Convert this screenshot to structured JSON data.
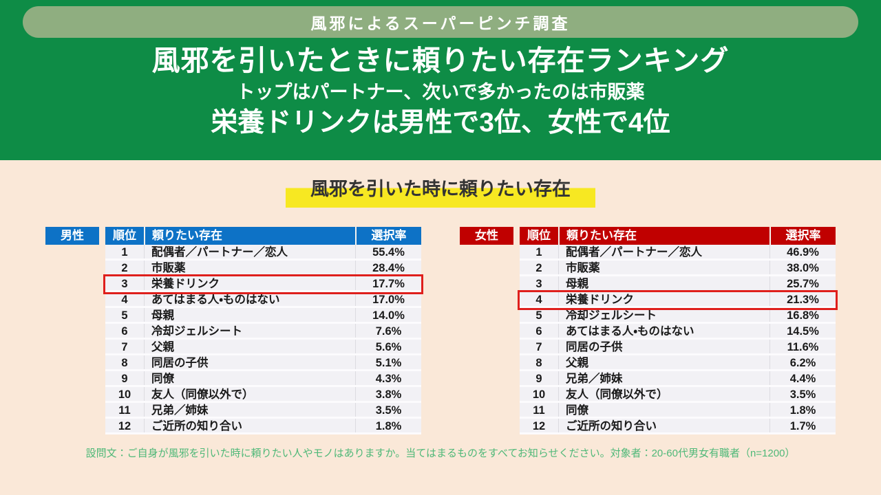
{
  "colors": {
    "green_bg": "#0e8c46",
    "badge_bg": "#8fae80",
    "cream_bg": "#fae8d8",
    "yellow_highlight": "#f7e822",
    "male_accent": "#0d72c6",
    "female_accent": "#c00000",
    "highlight_box": "#df1f1c",
    "footer_text": "#4fb878"
  },
  "header": {
    "badge": "風邪によるスーパーピンチ調査",
    "title": "風邪を引いたときに頼りたい存在ランキング",
    "subtitle": "トップはパートナー、次いで多かったのは市販薬",
    "emphasis": "栄養ドリンクは男性で3位、女性で4位"
  },
  "section_title": "風邪を引いた時に頼りたい存在",
  "chart_data": {
    "type": "table",
    "title": "風邪を引いた時に頼りたい存在",
    "tables": [
      {
        "gender": "男性",
        "accent": "#0d72c6",
        "columns": [
          "順位",
          "頼りたい存在",
          "選択率"
        ],
        "highlighted_rank": 3,
        "rows": [
          {
            "rank": 1,
            "item": "配偶者／パートナー／恋人",
            "pct": "55.4%"
          },
          {
            "rank": 2,
            "item": "市販薬",
            "pct": "28.4%"
          },
          {
            "rank": 3,
            "item": "栄養ドリンク",
            "pct": "17.7%"
          },
          {
            "rank": 4,
            "item": "あてはまる人・ものはない",
            "pct": "17.0%"
          },
          {
            "rank": 5,
            "item": "母親",
            "pct": "14.0%"
          },
          {
            "rank": 6,
            "item": "冷却ジェルシート",
            "pct": "7.6%"
          },
          {
            "rank": 7,
            "item": "父親",
            "pct": "5.6%"
          },
          {
            "rank": 8,
            "item": "同居の子供",
            "pct": "5.1%"
          },
          {
            "rank": 9,
            "item": "同僚",
            "pct": "4.3%"
          },
          {
            "rank": 10,
            "item": "友人（同僚以外で）",
            "pct": "3.8%"
          },
          {
            "rank": 11,
            "item": "兄弟／姉妹",
            "pct": "3.5%"
          },
          {
            "rank": 12,
            "item": "ご近所の知り合い",
            "pct": "1.8%"
          }
        ]
      },
      {
        "gender": "女性",
        "accent": "#c00000",
        "columns": [
          "順位",
          "頼りたい存在",
          "選択率"
        ],
        "highlighted_rank": 4,
        "rows": [
          {
            "rank": 1,
            "item": "配偶者／パートナー／恋人",
            "pct": "46.9%"
          },
          {
            "rank": 2,
            "item": "市販薬",
            "pct": "38.0%"
          },
          {
            "rank": 3,
            "item": "母親",
            "pct": "25.7%"
          },
          {
            "rank": 4,
            "item": "栄養ドリンク",
            "pct": "21.3%"
          },
          {
            "rank": 5,
            "item": "冷却ジェルシート",
            "pct": "16.8%"
          },
          {
            "rank": 6,
            "item": "あてはまる人・ものはない",
            "pct": "14.5%"
          },
          {
            "rank": 7,
            "item": "同居の子供",
            "pct": "11.6%"
          },
          {
            "rank": 8,
            "item": "父親",
            "pct": "6.2%"
          },
          {
            "rank": 9,
            "item": "兄弟／姉妹",
            "pct": "4.4%"
          },
          {
            "rank": 10,
            "item": "友人（同僚以外で）",
            "pct": "3.5%"
          },
          {
            "rank": 11,
            "item": "同僚",
            "pct": "1.8%"
          },
          {
            "rank": 12,
            "item": "ご近所の知り合い",
            "pct": "1.7%"
          }
        ]
      }
    ]
  },
  "footer": "設問文：ご自身が風邪を引いた時に頼りたい人やモノはありますか。当てはまるものをすべてお知らせください。対象者：20-60代男女有職者（n=1200）"
}
